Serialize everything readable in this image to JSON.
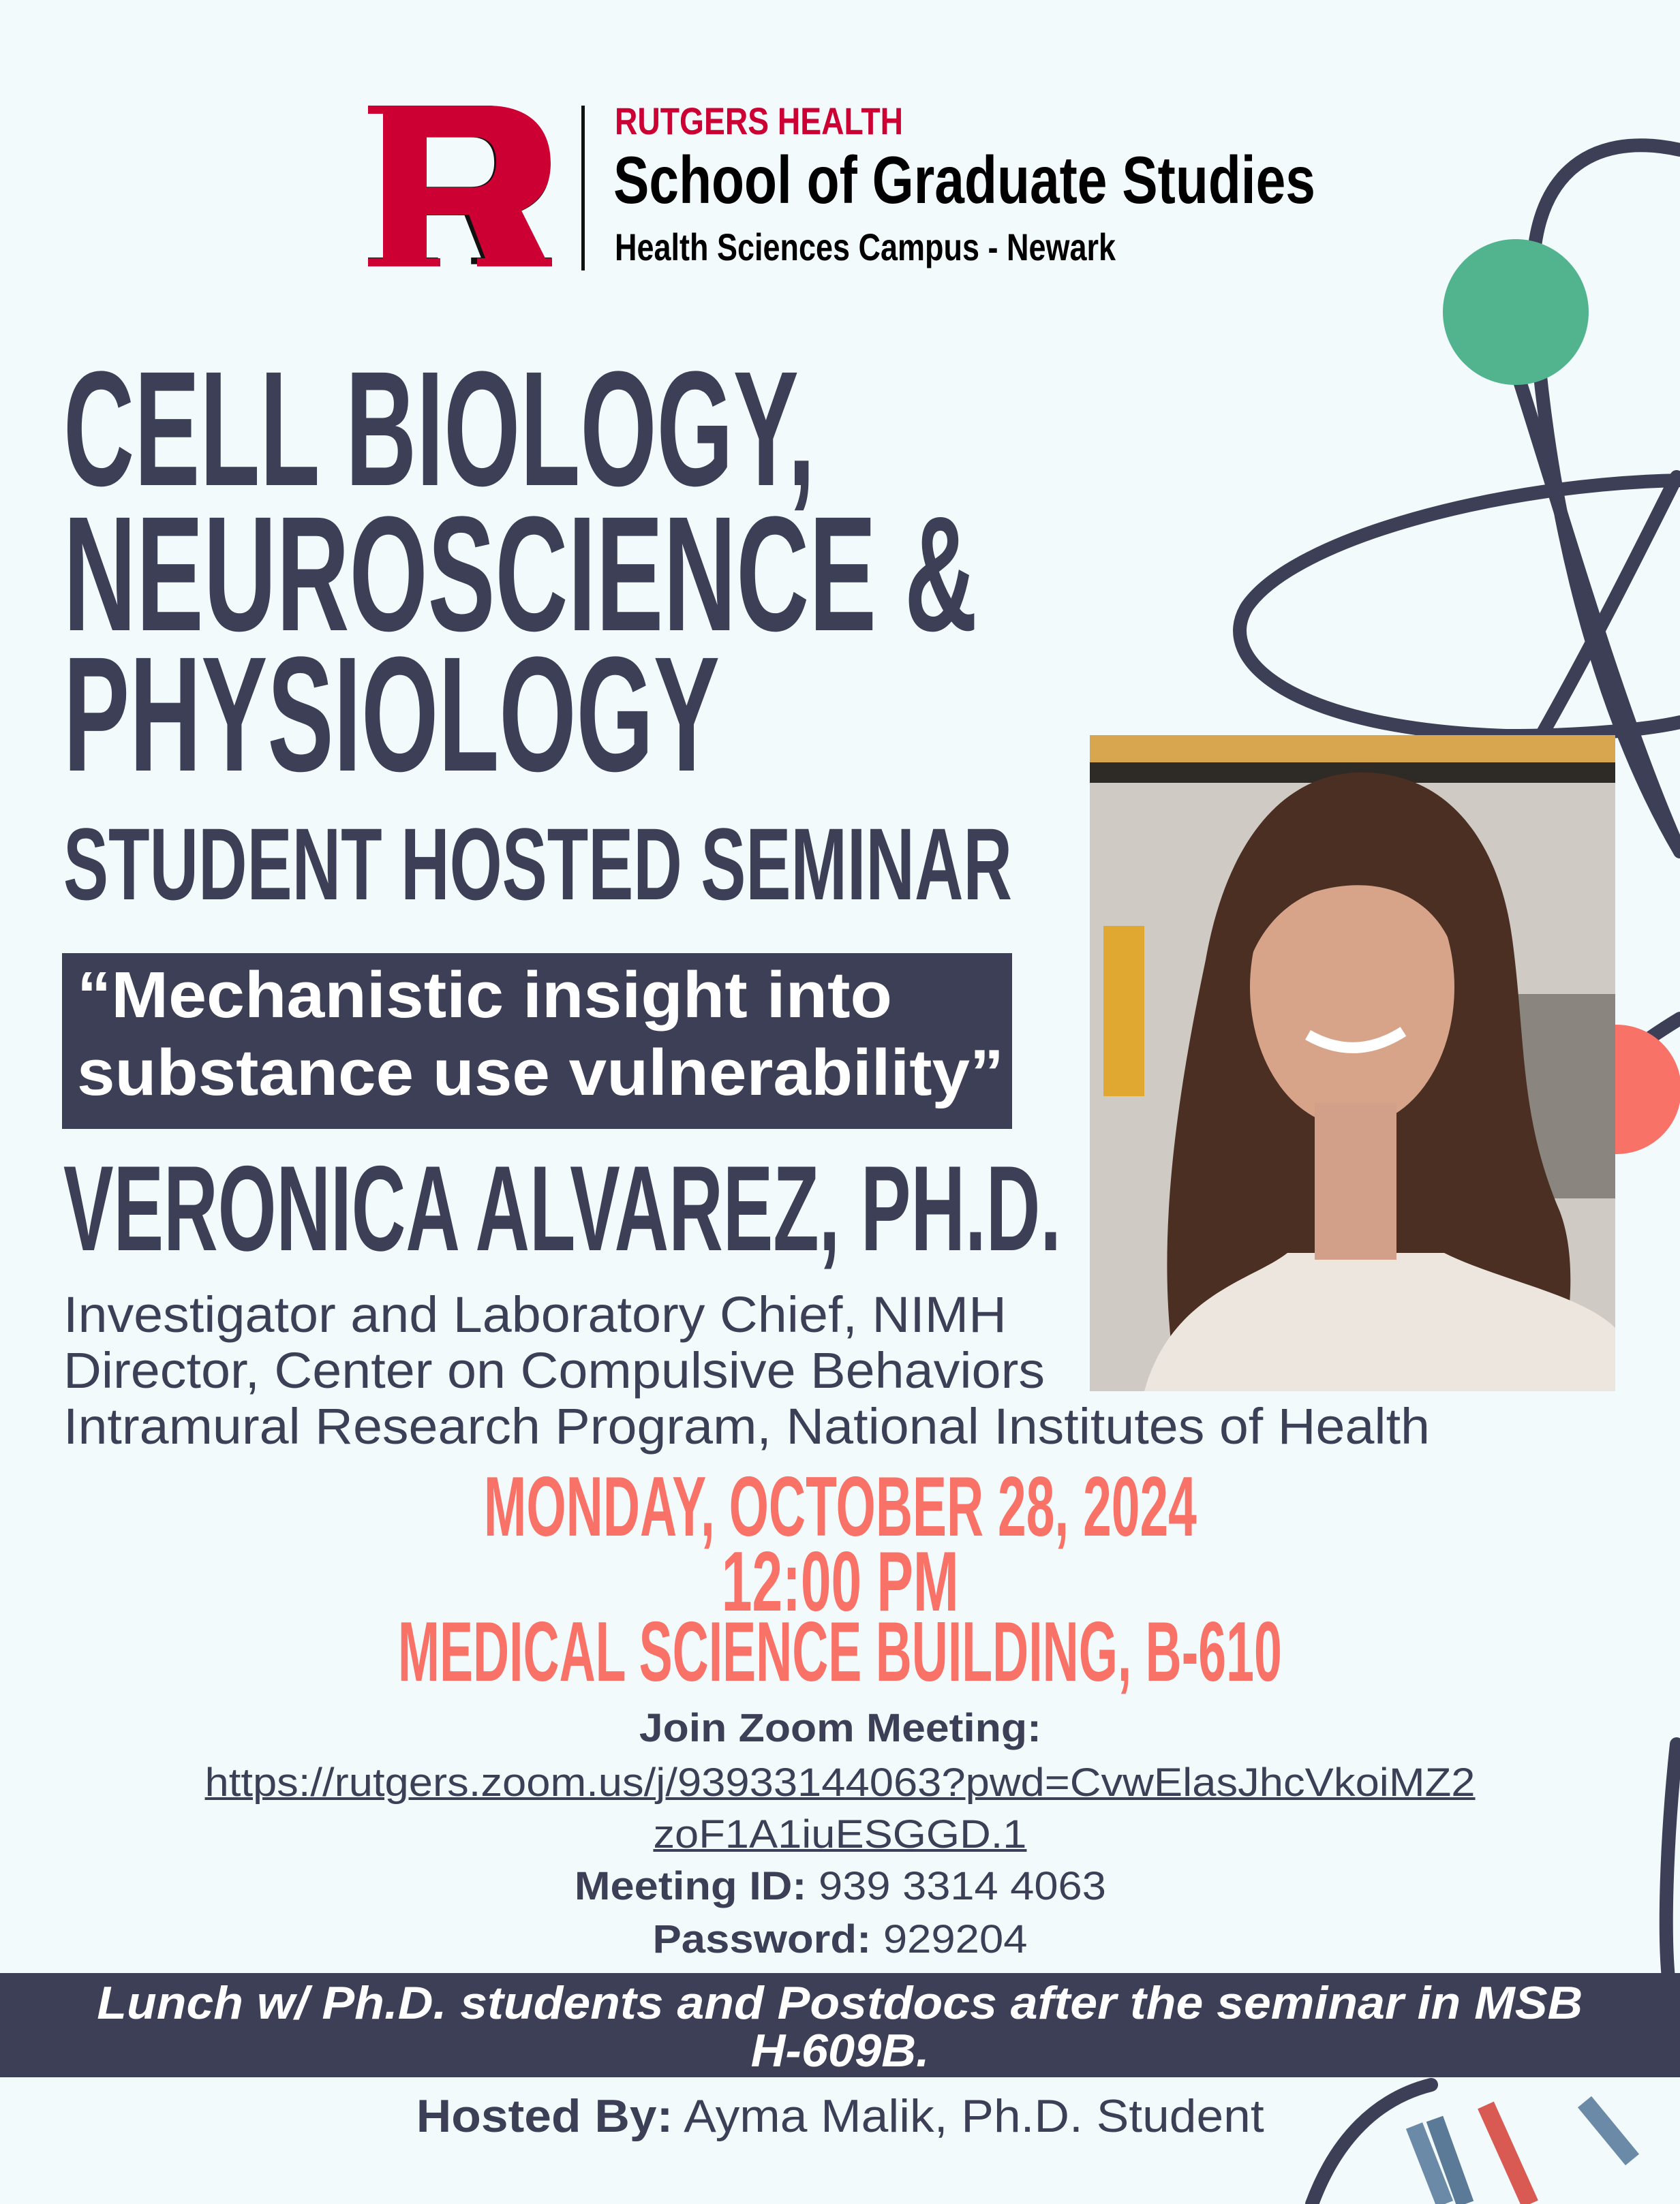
{
  "colors": {
    "background": "#f3fafc",
    "navy": "#3d3f57",
    "coral": "#f87268",
    "rutgers_red": "#cc0033",
    "green": "#52b48f",
    "steel_blue": "#6a8aa8"
  },
  "header": {
    "logo_letter": "R",
    "org": "RUTGERS HEALTH",
    "school": "School of Graduate Studies",
    "campus": "Health Sciences Campus - Newark"
  },
  "title": {
    "lines": [
      "CELL BIOLOGY,",
      "NEUROSCIENCE &",
      "PHYSIOLOGY"
    ],
    "subtitle": "STUDENT HOSTED SEMINAR"
  },
  "talk": {
    "title_lines": [
      "“Mechanistic insight into",
      "substance use vulnerability”"
    ]
  },
  "speaker": {
    "name": "VERONICA ALVAREZ, PH.D.",
    "affiliations": [
      "Investigator and Laboratory Chief, NIMH",
      "Director, Center on Compulsive Behaviors",
      "Intramural Research Program, National Institutes of Health"
    ]
  },
  "event": {
    "date": "MONDAY, OCTOBER 28, 2024",
    "time": "12:00 PM",
    "location": "MEDICAL SCIENCE BUILDING, B-610"
  },
  "zoom": {
    "heading": "Join Zoom Meeting:",
    "link_line1": "https://rutgers.zoom.us/j/93933144063?pwd=CvwElasJhcVkoiMZ2",
    "link_line2": "zoF1A1iuESGGD.1",
    "meeting_id_label": "Meeting ID:",
    "meeting_id": "939 3314 4063",
    "password_label": "Password:",
    "password": "929204"
  },
  "banner": {
    "lines": [
      "Lunch w/ Ph.D. students and Postdocs after the seminar in MSB",
      "H-609B."
    ]
  },
  "host": {
    "label": "Hosted By:",
    "name": "Ayma Malik, Ph.D. Student"
  }
}
